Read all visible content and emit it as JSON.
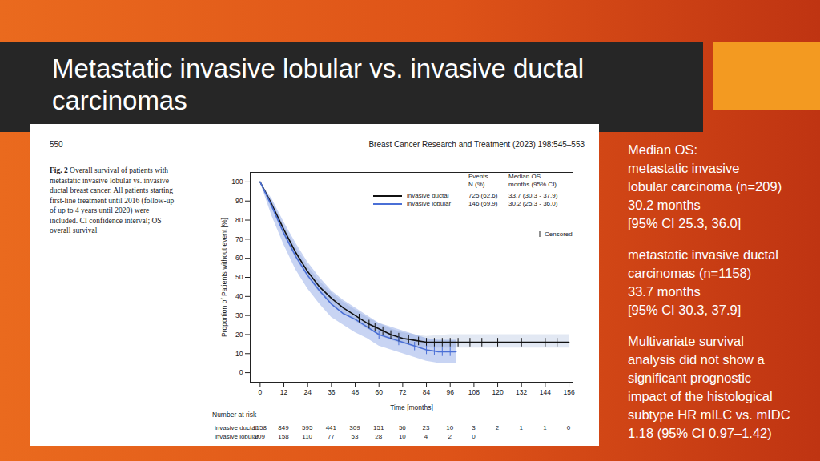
{
  "slide": {
    "title_lines": [
      "Metastatic invasive lobular vs. invasive ductal",
      "carcinomas"
    ],
    "side_text": [
      [
        "Median OS:",
        "metastatic invasive",
        "lobular carcinoma (n=209)",
        "30.2 months",
        "[95% CI 25.3, 36.0]"
      ],
      [
        "metastatic invasive ductal",
        "carcinomas (n=1158)",
        "33.7 months",
        "[95% CI 30.3, 37.9]"
      ],
      [
        "Multivariate survival",
        "analysis did not show a",
        "significant prognostic",
        "impact of the histological",
        "subtype HR mILC vs. mIDC",
        "1.18 (95% CI 0.97–1.42)"
      ]
    ]
  },
  "figure": {
    "page": "550",
    "journal": "Breast Cancer Research and Treatment (2023) 198:545–553",
    "caption_label": "Fig. 2",
    "caption": "Overall survival of patients with metastatic invasive lobular vs. invasive ductal breast cancer. All patients starting first-line treatment until 2016 (follow-up of up to 4 years until 2020) were included. CI confidence interval; OS overall survival"
  },
  "chart_data": {
    "type": "line",
    "xlabel": "Time [months]",
    "ylabel": "Proportion of Patients without event [%]",
    "xlim": [
      -5,
      158
    ],
    "ylim": [
      -5,
      105
    ],
    "xticks": [
      0,
      12,
      24,
      36,
      48,
      60,
      72,
      84,
      96,
      108,
      120,
      132,
      144,
      156
    ],
    "yticks": [
      0,
      10,
      20,
      30,
      40,
      50,
      60,
      70,
      80,
      90,
      100
    ],
    "grid": false,
    "legend_headers": [
      [
        "Events",
        "N (%)"
      ],
      [
        "Median OS",
        "months (95% CI)"
      ]
    ],
    "censored_label": "Censored",
    "risk_title": "Number at risk",
    "series": [
      {
        "name": "invasive ductal",
        "color": "#111111",
        "events": "725 (62.6)",
        "median_os": "33.7 (30.3 - 37.9)",
        "x": [
          0,
          6,
          12,
          18,
          24,
          30,
          36,
          42,
          48,
          54,
          60,
          66,
          72,
          78,
          84,
          96,
          108,
          156
        ],
        "values": [
          100,
          88,
          75,
          63,
          53,
          45,
          39,
          34,
          30,
          26,
          23,
          20,
          18,
          17,
          16,
          16,
          16,
          16
        ],
        "lower": [
          100,
          86,
          72,
          60,
          50,
          42,
          36,
          31,
          27,
          23,
          20,
          17,
          15,
          14,
          13,
          13,
          13,
          13
        ],
        "upper": [
          100,
          90,
          77,
          66,
          56,
          48,
          42,
          37,
          33,
          29,
          26,
          23,
          21,
          20,
          19,
          20,
          20,
          20
        ],
        "censored": [
          50,
          55,
          58,
          62,
          66,
          70,
          75,
          80,
          84,
          88,
          92,
          96,
          100,
          106,
          112,
          120,
          132,
          144,
          150
        ],
        "at_risk": [
          1158,
          849,
          595,
          441,
          309,
          151,
          56,
          23,
          10,
          3,
          2,
          1,
          1,
          0
        ]
      },
      {
        "name": "invasive lobular",
        "color": "#4a6fd6",
        "events": "146 (69.9)",
        "median_os": "30.2 (25.3 - 36.0)",
        "x": [
          0,
          6,
          12,
          18,
          24,
          30,
          36,
          42,
          48,
          54,
          60,
          66,
          72,
          78,
          84,
          90,
          99
        ],
        "values": [
          100,
          87,
          73,
          61,
          51,
          43,
          36,
          31,
          28,
          24,
          20,
          18,
          16,
          14,
          12,
          11,
          11
        ],
        "lower": [
          100,
          82,
          67,
          54,
          44,
          36,
          29,
          25,
          21,
          18,
          14,
          12,
          10,
          8,
          6,
          5,
          5
        ],
        "upper": [
          100,
          91,
          79,
          68,
          58,
          50,
          43,
          38,
          34,
          30,
          26,
          24,
          22,
          20,
          18,
          17,
          17
        ],
        "censored": [
          60,
          70,
          78,
          84,
          88,
          92,
          96
        ],
        "at_risk": [
          209,
          158,
          110,
          77,
          53,
          28,
          10,
          4,
          2,
          0,
          null,
          null,
          null,
          null
        ]
      }
    ]
  }
}
